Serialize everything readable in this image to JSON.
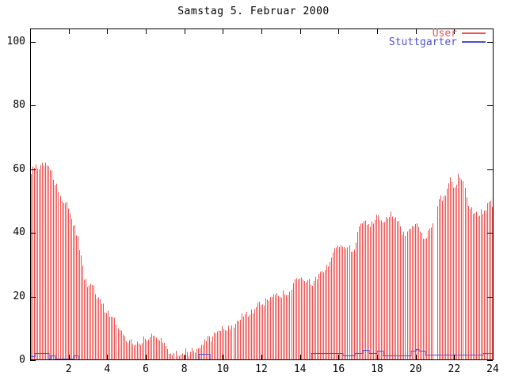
{
  "window": {
    "description": "Statistics plot for one day, gnuplot style, white background"
  },
  "chart_data": {
    "type": "bar",
    "title": "Samstag 5. Februar 2000",
    "xlabel": "",
    "ylabel": "",
    "x_axis": {
      "unit": "hour of day",
      "min": 0,
      "max": 24,
      "tick_step": 2,
      "tick_labels": [
        "2",
        "4",
        "6",
        "8",
        "10",
        "12",
        "14",
        "16",
        "18",
        "20",
        "22",
        "24"
      ]
    },
    "y_axis": {
      "min": 0,
      "max": 104,
      "tick_step": 20,
      "tick_labels": [
        "0",
        "20",
        "40",
        "60",
        "80",
        "100"
      ]
    },
    "grid": "off",
    "legend_position": "top-right",
    "series": [
      {
        "name": "User",
        "style": "impulse-bars",
        "color": "#ee5352",
        "sample_interval_minutes": 5,
        "envelope_step_hours": 0.25,
        "envelope_values": [
          58,
          61,
          60.5,
          61,
          60,
          57,
          52.5,
          49,
          48,
          42,
          37,
          27,
          22,
          23.5,
          20,
          17,
          15.5,
          13,
          11.5,
          8,
          6.5,
          5.5,
          4.8,
          6,
          6.5,
          7.8,
          6.6,
          7,
          4.2,
          3,
          2.5,
          2.6,
          2.5,
          2.7,
          3,
          4.4,
          5.4,
          6.6,
          7.4,
          8.8,
          9.8,
          10.2,
          11,
          12.6,
          13.8,
          14.6,
          15.6,
          16.8,
          17.4,
          18.6,
          20.5,
          22,
          20.5,
          21,
          22.5,
          24.5,
          25.5,
          25,
          24,
          25,
          27.5,
          28.6,
          30.4,
          33.5,
          36.8,
          36.2,
          35,
          34.2,
          41.5,
          44.2,
          42,
          42.5,
          45.4,
          44.6,
          44.4,
          45.8,
          44.6,
          40.5,
          39.5,
          43,
          42.6,
          40,
          38.8,
          41.6,
          46,
          50.2,
          51.6,
          57,
          54,
          58.6,
          54.5,
          48.4,
          47,
          45.8,
          46.4,
          49
        ],
        "gaps_hours": [
          [
            20.92,
            21.09
          ]
        ],
        "jitter_amplitude": 2.6
      },
      {
        "name": "Stuttgarter",
        "style": "step-line",
        "color": "#5050d2",
        "segments_start_end_value": [
          [
            0.0,
            0.17,
            1.2
          ],
          [
            0.17,
            0.92,
            2.3
          ],
          [
            0.92,
            1.08,
            0.6
          ],
          [
            1.08,
            1.27,
            1.5
          ],
          [
            1.27,
            2.18,
            0.4
          ],
          [
            2.18,
            2.42,
            1.5
          ],
          [
            2.42,
            8.67,
            0.3
          ],
          [
            8.67,
            9.33,
            2.0
          ],
          [
            9.33,
            14.58,
            0.3
          ],
          [
            14.58,
            16.17,
            2.3
          ],
          [
            16.17,
            16.83,
            1.4
          ],
          [
            16.83,
            17.25,
            2.3
          ],
          [
            17.25,
            17.58,
            3.2
          ],
          [
            17.58,
            17.97,
            2.3
          ],
          [
            17.97,
            18.33,
            3.0
          ],
          [
            18.33,
            19.67,
            1.5
          ],
          [
            19.67,
            19.97,
            3.0
          ],
          [
            19.97,
            20.13,
            3.5
          ],
          [
            20.13,
            20.5,
            3.0
          ],
          [
            20.5,
            23.42,
            1.8
          ],
          [
            23.42,
            24.0,
            2.3
          ]
        ]
      }
    ]
  },
  "legend": {
    "entries": [
      {
        "label": "User",
        "color": "#ee5352"
      },
      {
        "label": "Stuttgarter",
        "color": "#5050d2"
      }
    ]
  },
  "colors": {
    "background": "#ffffff",
    "axis": "#000000",
    "user_red": "#ee5352",
    "stuttgarter_blue": "#5050d2"
  }
}
